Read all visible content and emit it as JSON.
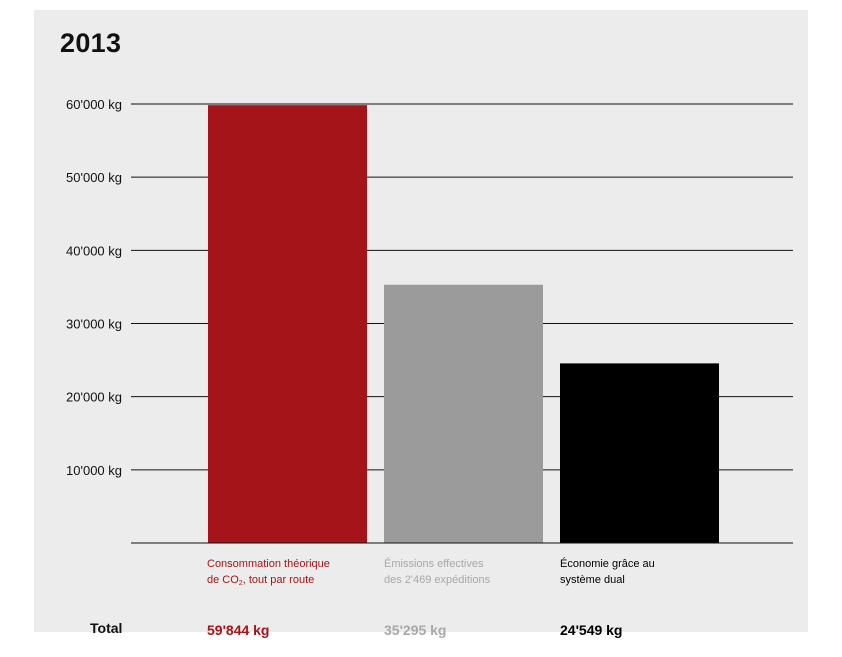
{
  "chart_data": {
    "type": "bar",
    "title": "2013",
    "ylim": [
      0,
      60000
    ],
    "yticks": [
      "10'000 kg",
      "20'000 kg",
      "30'000 kg",
      "40'000 kg",
      "50'000 kg",
      "60'000 kg"
    ],
    "ytick_values": [
      10000,
      20000,
      30000,
      40000,
      50000,
      60000
    ],
    "grid": true,
    "categories": [
      {
        "line1": "Consommation théorique",
        "line2_pre": "de CO",
        "line2_sub": "2",
        "line2_post": ", tout par route"
      },
      {
        "line1": "Émissions effectives",
        "line2_pre": "des 2'469 expéditions",
        "line2_sub": "",
        "line2_post": ""
      },
      {
        "line1": "Économie grâce au",
        "line2_pre": "système dual",
        "line2_sub": "",
        "line2_post": ""
      }
    ],
    "values": [
      59844,
      35295,
      24549
    ],
    "value_labels": [
      "59'844 kg",
      "35'295 kg",
      "24'549 kg"
    ],
    "colors": [
      "#a51419",
      "#9b9b9b",
      "#000000"
    ],
    "total_label": "Total"
  }
}
